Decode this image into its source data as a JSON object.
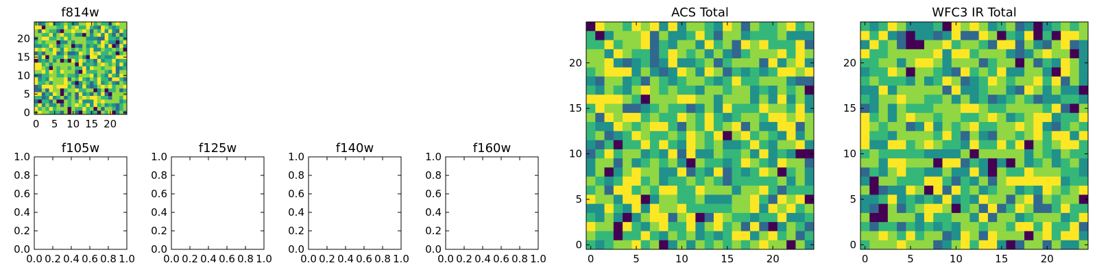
{
  "chart_data": [
    {
      "type": "heatmap",
      "title": "f814w",
      "xlabel": "",
      "ylabel": "",
      "grid_size": [
        25,
        25
      ],
      "xlim": [
        -0.5,
        24.5
      ],
      "ylim": [
        -0.5,
        24.5
      ],
      "x_ticks": [
        0,
        5,
        10,
        15,
        20
      ],
      "y_ticks": [
        0,
        5,
        10,
        15,
        20
      ],
      "colormap": [
        "#440154",
        "#31688e",
        "#21918c",
        "#35b779",
        "#90d743",
        "#fde725"
      ],
      "values_note": "25x25 pixel image rendered with viridis colormap; mostly green-yellow values with scattered dark pixels"
    },
    {
      "type": "empty",
      "title": "f105w",
      "xlim": [
        0,
        1
      ],
      "ylim": [
        0,
        1
      ],
      "x_tick_labels": [
        "0.0",
        "0.2",
        "0.4",
        "0.6",
        "0.8",
        "1.0"
      ],
      "y_tick_labels": [
        "0.0",
        "0.2",
        "0.4",
        "0.6",
        "0.8",
        "1.0"
      ]
    },
    {
      "type": "empty",
      "title": "f125w",
      "xlim": [
        0,
        1
      ],
      "ylim": [
        0,
        1
      ],
      "x_tick_labels": [
        "0.0",
        "0.2",
        "0.4",
        "0.6",
        "0.8",
        "1.0"
      ],
      "y_tick_labels": [
        "0.0",
        "0.2",
        "0.4",
        "0.6",
        "0.8",
        "1.0"
      ]
    },
    {
      "type": "empty",
      "title": "f140w",
      "xlim": [
        0,
        1
      ],
      "ylim": [
        0,
        1
      ],
      "x_tick_labels": [
        "0.0",
        "0.2",
        "0.4",
        "0.6",
        "0.8",
        "1.0"
      ],
      "y_tick_labels": [
        "0.0",
        "0.2",
        "0.4",
        "0.6",
        "0.8",
        "1.0"
      ]
    },
    {
      "type": "empty",
      "title": "f160w",
      "xlim": [
        0,
        1
      ],
      "ylim": [
        0,
        1
      ],
      "x_tick_labels": [
        "0.0",
        "0.2",
        "0.4",
        "0.6",
        "0.8",
        "1.0"
      ],
      "y_tick_labels": [
        "0.0",
        "0.2",
        "0.4",
        "0.6",
        "0.8",
        "1.0"
      ]
    },
    {
      "type": "heatmap",
      "title": "ACS Total",
      "grid_size": [
        25,
        25
      ],
      "xlim": [
        -0.5,
        24.5
      ],
      "ylim": [
        -0.5,
        24.5
      ],
      "x_ticks": [
        0,
        5,
        10,
        15,
        20
      ],
      "y_ticks": [
        0,
        5,
        10,
        15,
        20
      ],
      "colormap": [
        "#440154",
        "#31688e",
        "#21918c",
        "#35b779",
        "#90d743",
        "#fde725"
      ]
    },
    {
      "type": "heatmap",
      "title": "WFC3 IR Total",
      "grid_size": [
        25,
        25
      ],
      "xlim": [
        -0.5,
        24.5
      ],
      "ylim": [
        -0.5,
        24.5
      ],
      "x_ticks": [
        0,
        5,
        10,
        15,
        20
      ],
      "y_ticks": [
        0,
        5,
        10,
        15,
        20
      ],
      "colormap": [
        "#440154",
        "#31688e",
        "#21918c",
        "#35b779",
        "#90d743",
        "#fde725"
      ]
    }
  ]
}
